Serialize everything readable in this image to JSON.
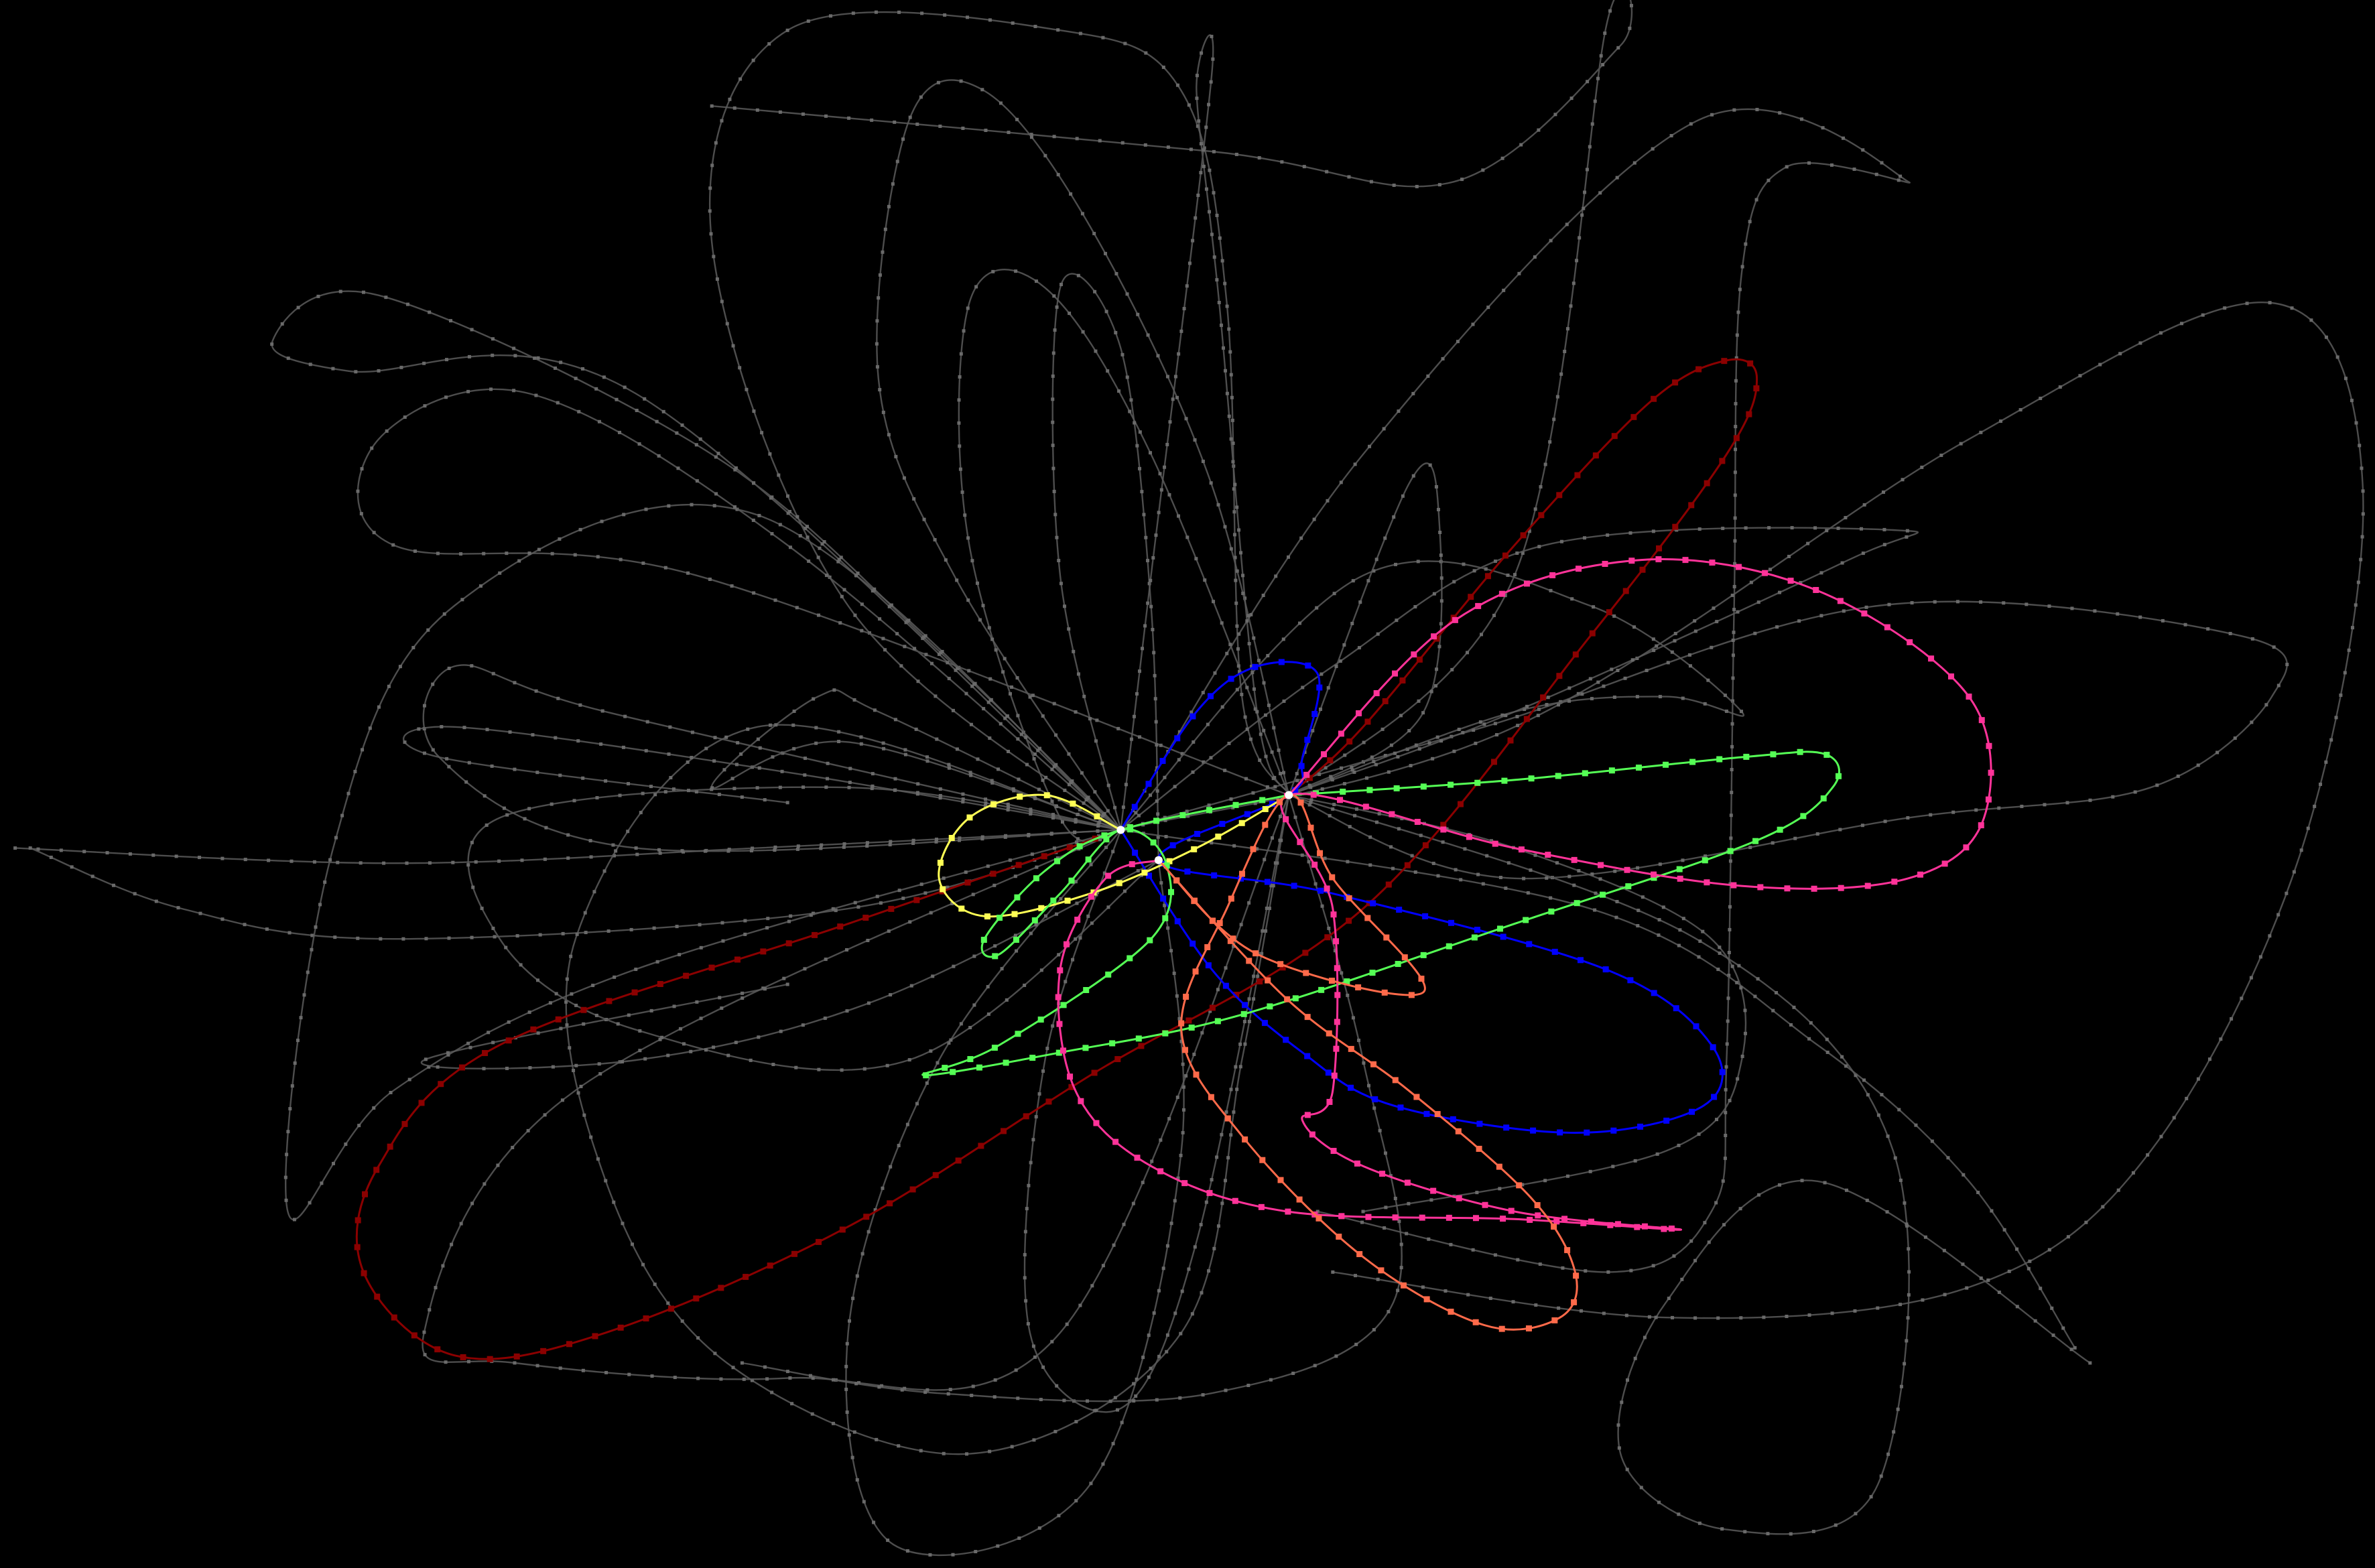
{
  "graph": {
    "background_color": "#000000",
    "edge_color": "#5a5a5a",
    "node_color": "#6a6a6a",
    "highlight_colors": {
      "darkred": "#8b0000",
      "blue": "#0000ff",
      "yellow": "#ffff55",
      "green": "#55ff55",
      "pink": "#ff3399",
      "salmon": "#ff6a4a"
    },
    "hub_nodes": [
      "hub-1",
      "hub-2",
      "hub-3"
    ]
  }
}
